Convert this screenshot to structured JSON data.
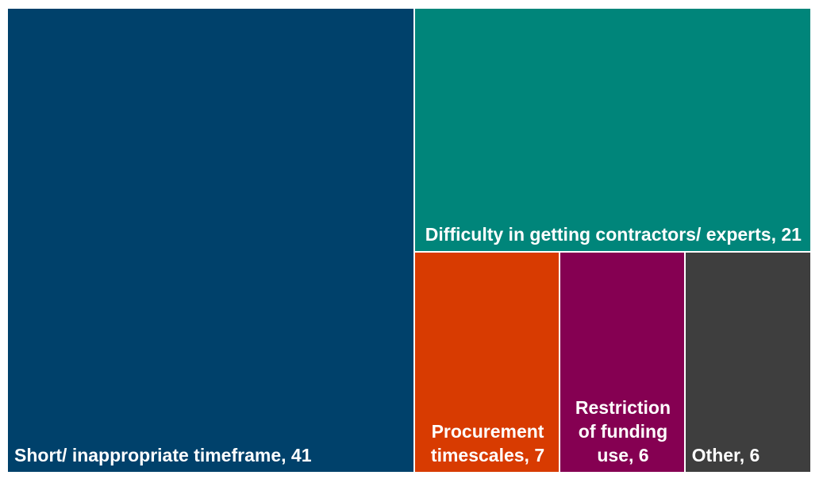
{
  "chart_data": {
    "type": "treemap",
    "items": [
      {
        "label": "Short/ inappropriate timeframe, 41",
        "category": "Short/ inappropriate timeframe",
        "value": 41,
        "color": "#00416B",
        "align": "left"
      },
      {
        "label": "Difficulty in getting contractors/ experts, 21",
        "category": "Difficulty in getting contractors/ experts",
        "value": 21,
        "color": "#00857A",
        "align": "center"
      },
      {
        "label": "Procurement timescales, 7",
        "category": "Procurement timescales",
        "value": 7,
        "color": "#D83B01",
        "align": "center"
      },
      {
        "label": "Restriction of funding use, 6",
        "category": "Restriction of funding use",
        "value": 6,
        "color": "#850052",
        "align": "center"
      },
      {
        "label": "Other, 6",
        "category": "Other",
        "value": 6,
        "color": "#3E3E3E",
        "align": "left"
      }
    ]
  }
}
